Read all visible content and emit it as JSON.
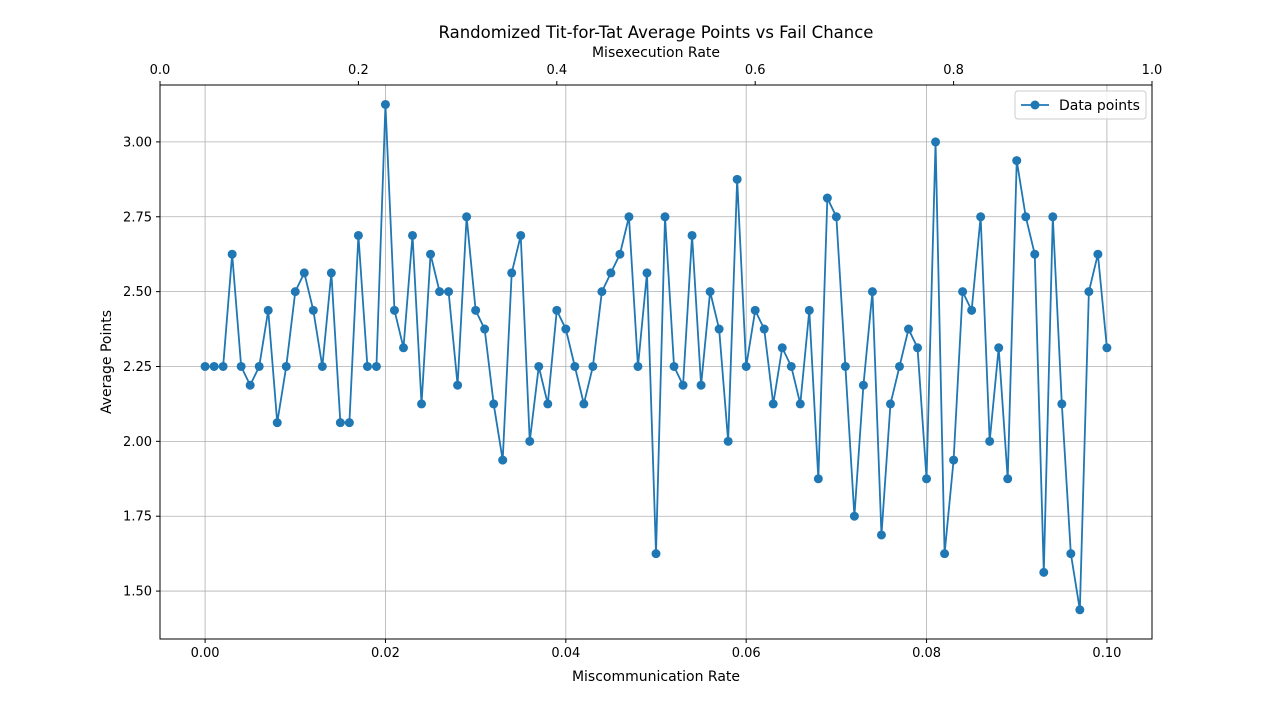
{
  "chart_data": {
    "type": "line",
    "title": "Randomized Tit-for-Tat Average Points vs Fail Chance",
    "xlabel": "Miscommunication Rate",
    "ylabel": "Average Points",
    "top_xlabel": "Misexecution Rate",
    "xlim": [
      -0.005,
      0.105
    ],
    "ylim": [
      1.34,
      3.19
    ],
    "top_xlim": [
      0.0,
      1.0
    ],
    "x_ticks": [
      0.0,
      0.02,
      0.04,
      0.06,
      0.08,
      0.1
    ],
    "x_tick_labels": [
      "0.00",
      "0.02",
      "0.04",
      "0.06",
      "0.08",
      "0.10"
    ],
    "y_ticks": [
      1.5,
      1.75,
      2.0,
      2.25,
      2.5,
      2.75,
      3.0
    ],
    "y_tick_labels": [
      "1.50",
      "1.75",
      "2.00",
      "2.25",
      "2.50",
      "2.75",
      "3.00"
    ],
    "top_ticks": [
      0.0,
      0.2,
      0.4,
      0.6,
      0.8,
      1.0
    ],
    "top_tick_labels": [
      "0.0",
      "0.2",
      "0.4",
      "0.6",
      "0.8",
      "1.0"
    ],
    "grid": true,
    "legend_position": "top-right",
    "color": "#1f77b4",
    "series": [
      {
        "name": "Data points",
        "x_start": 0.0,
        "x_step": 0.001,
        "values": [
          2.25,
          2.25,
          2.25,
          2.625,
          2.25,
          2.1875,
          2.25,
          2.4375,
          2.0625,
          2.25,
          2.5,
          2.5625,
          2.4375,
          2.25,
          2.5625,
          2.0625,
          2.0625,
          2.6875,
          2.25,
          2.25,
          3.125,
          2.4375,
          2.3125,
          2.6875,
          2.125,
          2.625,
          2.5,
          2.5,
          2.1875,
          2.75,
          2.4375,
          2.375,
          2.125,
          1.9375,
          2.5625,
          2.6875,
          2.0,
          2.25,
          2.125,
          2.4375,
          2.375,
          2.25,
          2.125,
          2.25,
          2.5,
          2.5625,
          2.625,
          2.75,
          2.25,
          2.5625,
          1.625,
          2.75,
          2.25,
          2.1875,
          2.6875,
          2.1875,
          2.5,
          2.375,
          2.0,
          2.875,
          2.25,
          2.4375,
          2.375,
          2.125,
          2.3125,
          2.25,
          2.125,
          2.4375,
          1.875,
          2.8125,
          2.75,
          2.25,
          1.75,
          2.1875,
          2.5,
          1.6875,
          2.125,
          2.25,
          2.375,
          2.3125,
          1.875,
          3.0,
          1.625,
          1.9375,
          2.5,
          2.4375,
          2.75,
          2.0,
          2.3125,
          1.875,
          2.9375,
          2.75,
          2.625,
          1.5625,
          2.75,
          2.125,
          1.625,
          1.4375,
          2.5,
          2.625,
          2.3125
        ]
      }
    ]
  }
}
